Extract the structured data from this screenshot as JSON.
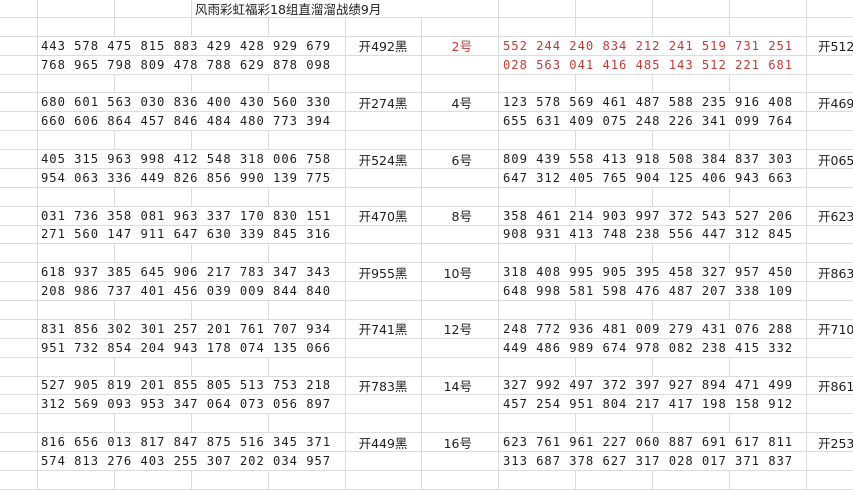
{
  "title": "风雨彩虹福彩18组直溜溜战绩9月",
  "colors": {
    "highlight": "#c33b36",
    "text": "#1e1e1e",
    "grid": "#dcdcdc"
  },
  "groups": [
    {
      "left_rows": [
        "443 578 475 815 883 429 428 929 679",
        "768 965 798 809 478 788 629 878 098"
      ],
      "left_result": "开492黑",
      "number": "2号",
      "number_highlight": true,
      "right_rows": [
        "552 244 240 834 212 241 519 731 251",
        "028 563 041 416 485 143 512 221 681"
      ],
      "right_highlight": true,
      "right_result": "开512"
    },
    {
      "left_rows": [
        "680 601 563 030 836 400 430 560 330",
        "660 606 864 457 846 484 480 773 394"
      ],
      "left_result": "开274黑",
      "number": "4号",
      "number_highlight": false,
      "right_rows": [
        "123 578 569 461 487 588 235 916 408",
        "655 631 409 075 248 226 341 099 764"
      ],
      "right_highlight": false,
      "right_result": "开469"
    },
    {
      "left_rows": [
        "405 315 963 998 412 548 318 006 758",
        "954 063 336 449 826 856 990 139 775"
      ],
      "left_result": "开524黑",
      "number": "6号",
      "number_highlight": false,
      "right_rows": [
        "809 439 558 413 918 508 384 837 303",
        "647 312 405 765 904 125 406 943 663"
      ],
      "right_highlight": false,
      "right_result": "开065"
    },
    {
      "left_rows": [
        "031 736 358 081 963 337 170 830 151",
        "271 560 147 911 647 630 339 845 316"
      ],
      "left_result": "开470黑",
      "number": "8号",
      "number_highlight": false,
      "right_rows": [
        "358 461 214 903 997 372 543 527 206",
        "908 931 413 748 238 556 447 312 845"
      ],
      "right_highlight": false,
      "right_result": "开623"
    },
    {
      "left_rows": [
        "618 937 385 645 906 217 783 347 343",
        "208 986 737 401 456 039 009 844 840"
      ],
      "left_result": "开955黑",
      "number": "10号",
      "number_highlight": false,
      "right_rows": [
        "318 408 995 905 395 458 327 957 450",
        "648 998 581 598 476 487 207 338 109"
      ],
      "right_highlight": false,
      "right_result": "开863"
    },
    {
      "left_rows": [
        "831 856 302 301 257 201 761 707 934",
        "951 732 854 204 943 178 074 135 066"
      ],
      "left_result": "开741黑",
      "number": "12号",
      "number_highlight": false,
      "right_rows": [
        "248 772 936 481 009 279 431 076 288",
        "449 486 989 674 978 082 238 415 332"
      ],
      "right_highlight": false,
      "right_result": "开710"
    },
    {
      "left_rows": [
        "527 905 819 201 855 805 513 753 218",
        "312 569 093 953 347 064 073 056 897"
      ],
      "left_result": "开783黑",
      "number": "14号",
      "number_highlight": false,
      "right_rows": [
        "327 992 497 372 397 927 894 471 499",
        "457 254 951 804 217 417 198 158 912"
      ],
      "right_highlight": false,
      "right_result": "开861"
    },
    {
      "left_rows": [
        "816 656 013 817 847 875 516 345 371",
        "574 813 276 403 255 307 202 034 957"
      ],
      "left_result": "开449黑",
      "number": "16号",
      "number_highlight": false,
      "right_rows": [
        "623 761 961 227 060 887 691 617 811",
        "313 687 378 627 317 028 017 371 837"
      ],
      "right_highlight": false,
      "right_result": "开253"
    }
  ]
}
